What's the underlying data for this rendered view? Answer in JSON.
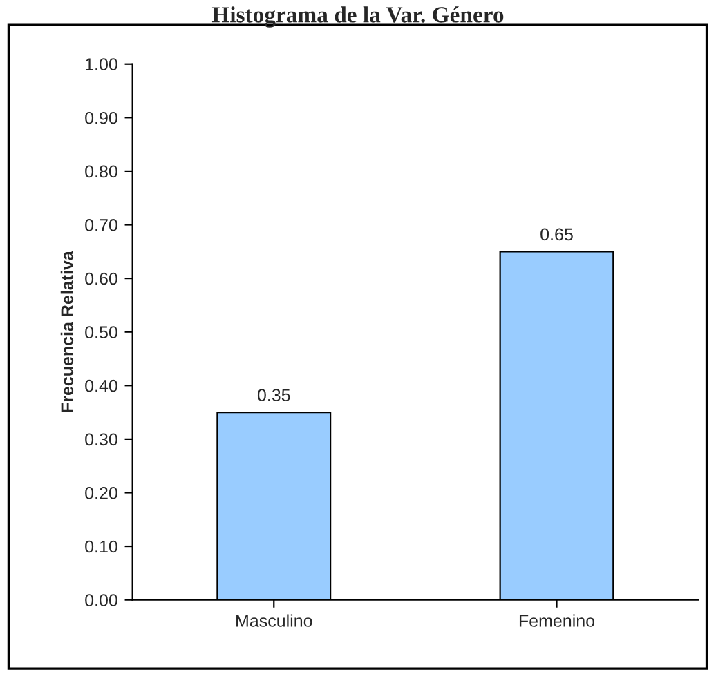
{
  "chart_data": {
    "type": "bar",
    "title": "Histograma de la Var. Género",
    "ylabel": "Frecuencia Relativa",
    "categories": [
      "Masculino",
      "Femenino"
    ],
    "series": [
      {
        "color": "#99ccff",
        "values": [
          0.35,
          0.65
        ]
      }
    ],
    "data_labels": true,
    "grid": false,
    "legend": false,
    "ylim": [
      0,
      1
    ],
    "yticks": [
      {
        "value": 0,
        "label": "0.00"
      },
      {
        "value": 0.1,
        "label": "0.10"
      },
      {
        "value": 0.2,
        "label": "0.20"
      },
      {
        "value": 0.3,
        "label": "0.30"
      },
      {
        "value": 0.4,
        "label": "0.40"
      },
      {
        "value": 0.5,
        "label": "0.50"
      },
      {
        "value": 0.6,
        "label": "0.60"
      },
      {
        "value": 0.7,
        "label": "0.70"
      },
      {
        "value": 0.8,
        "label": "0.80"
      },
      {
        "value": 0.9,
        "label": "0.90"
      },
      {
        "value": 1,
        "label": "1.00"
      }
    ]
  }
}
